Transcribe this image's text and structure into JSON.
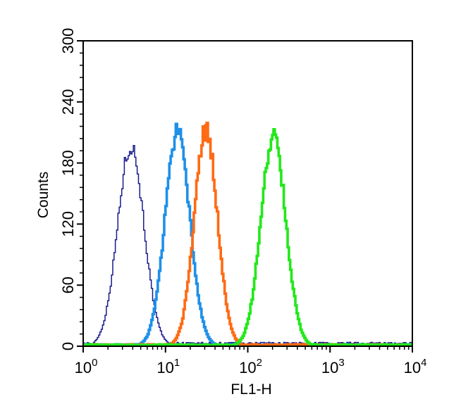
{
  "chart_data": {
    "type": "histogram",
    "xlabel": "FL1-H",
    "ylabel": "Counts",
    "x_scale": "log",
    "xlim": [
      1,
      10000
    ],
    "ylim": [
      0,
      300
    ],
    "grid": false,
    "y_ticks": [
      0,
      60,
      120,
      180,
      240,
      300
    ],
    "x_ticks": [
      {
        "base": "10",
        "exp": "0",
        "value": 1
      },
      {
        "base": "10",
        "exp": "1",
        "value": 10
      },
      {
        "base": "10",
        "exp": "2",
        "value": 100
      },
      {
        "base": "10",
        "exp": "3",
        "value": 1000
      },
      {
        "base": "10",
        "exp": "4",
        "value": 10000
      }
    ],
    "series": [
      {
        "color": "#1a1a8c",
        "stroke_weight": "thin",
        "peak_x": 3.8,
        "peak_y": 197,
        "spread_log10": 0.16,
        "floor": 3
      },
      {
        "color": "#1e90e8",
        "stroke_weight": "thick",
        "peak_x": 14,
        "peak_y": 210,
        "spread_log10": 0.15,
        "floor": 1.5
      },
      {
        "color": "#ff6a14",
        "stroke_weight": "thick",
        "peak_x": 31,
        "peak_y": 212,
        "spread_log10": 0.14,
        "floor": 1.5
      },
      {
        "color": "#22e81a",
        "stroke_weight": "thick",
        "peak_x": 205,
        "peak_y": 208,
        "spread_log10": 0.15,
        "floor": 1.5
      }
    ]
  }
}
